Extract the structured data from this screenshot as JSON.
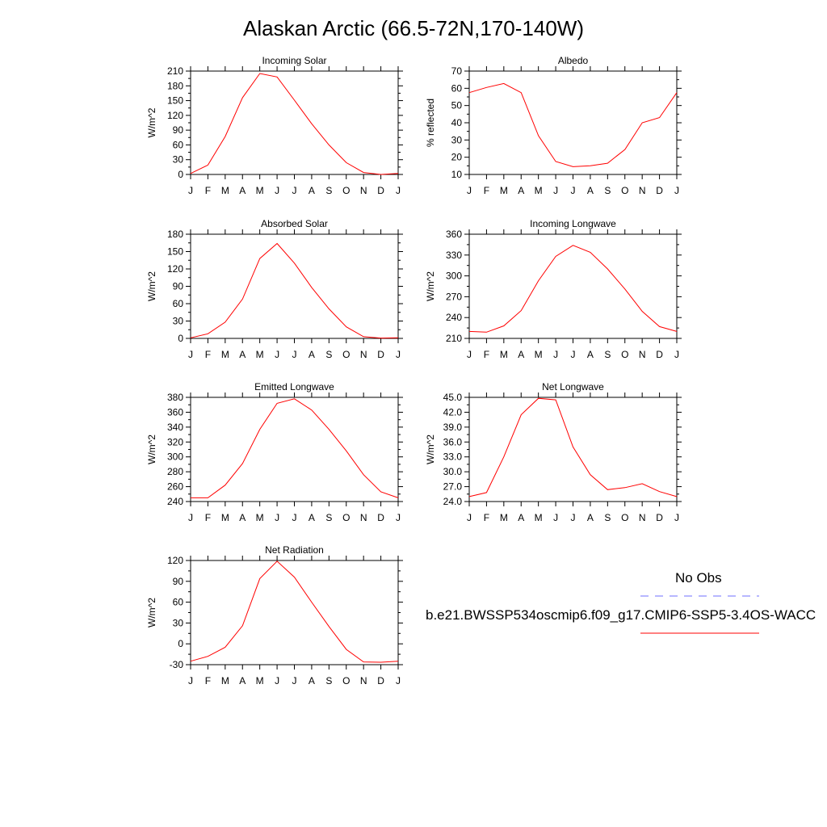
{
  "title": "Alaskan Arctic (66.5-72N,170-140W)",
  "months": [
    "J",
    "F",
    "M",
    "A",
    "M",
    "J",
    "J",
    "A",
    "S",
    "O",
    "N",
    "D",
    "J"
  ],
  "legend": {
    "obs_label": "No Obs",
    "obs_color": "#6f6fff",
    "model_label": "b.e21.BWSSP534oscmip6.f09_g17.CMIP6-SSP5-3.4OS-WACC",
    "model_color": "#ff0000"
  },
  "chart_data": [
    {
      "type": "line",
      "title": "Incoming Solar",
      "ylabel": "W/m^2",
      "ylim": [
        0,
        210
      ],
      "yticks": [
        0,
        30,
        60,
        90,
        120,
        150,
        180,
        210
      ],
      "ytick_labels": [
        "0",
        "30",
        "60",
        "90",
        "120",
        "150",
        "180",
        "210"
      ],
      "x": [
        "J",
        "F",
        "M",
        "A",
        "M",
        "J",
        "J",
        "A",
        "S",
        "O",
        "N",
        "D",
        "J"
      ],
      "series": [
        {
          "values": [
            2,
            19,
            77,
            156,
            205,
            198,
            151,
            103,
            60,
            24,
            4,
            0,
            2
          ]
        }
      ]
    },
    {
      "type": "line",
      "title": "Albedo",
      "ylabel": "% reflected",
      "ylim": [
        10,
        70
      ],
      "yticks": [
        10,
        20,
        30,
        40,
        50,
        60,
        70
      ],
      "ytick_labels": [
        "10",
        "20",
        "30",
        "40",
        "50",
        "60",
        "70"
      ],
      "x": [
        "J",
        "F",
        "M",
        "A",
        "M",
        "J",
        "J",
        "A",
        "S",
        "O",
        "N",
        "D",
        "J"
      ],
      "series": [
        {
          "values": [
            57.5,
            60.5,
            62.8,
            57.5,
            32.5,
            17.5,
            14.5,
            15,
            16.5,
            24.5,
            40,
            43,
            57.5
          ]
        }
      ]
    },
    {
      "type": "line",
      "title": "Absorbed Solar",
      "ylabel": "W/m^2",
      "ylim": [
        0,
        180
      ],
      "yticks": [
        0,
        30,
        60,
        90,
        120,
        150,
        180
      ],
      "ytick_labels": [
        "0",
        "30",
        "60",
        "90",
        "120",
        "150",
        "180"
      ],
      "x": [
        "J",
        "F",
        "M",
        "A",
        "M",
        "J",
        "J",
        "A",
        "S",
        "O",
        "N",
        "D",
        "J"
      ],
      "series": [
        {
          "values": [
            1,
            8,
            28,
            68,
            138,
            164,
            130,
            88,
            51,
            20,
            3,
            0.5,
            1
          ]
        }
      ]
    },
    {
      "type": "line",
      "title": "Incoming Longwave",
      "ylabel": "W/m^2",
      "ylim": [
        210,
        360
      ],
      "yticks": [
        210,
        240,
        270,
        300,
        330,
        360
      ],
      "ytick_labels": [
        "210",
        "240",
        "270",
        "300",
        "330",
        "360"
      ],
      "x": [
        "J",
        "F",
        "M",
        "A",
        "M",
        "J",
        "J",
        "A",
        "S",
        "O",
        "N",
        "D",
        "J"
      ],
      "series": [
        {
          "values": [
            220,
            219,
            228,
            250,
            293,
            328,
            344,
            334,
            310,
            281,
            249,
            227,
            220
          ]
        }
      ]
    },
    {
      "type": "line",
      "title": "Emitted Longwave",
      "ylabel": "W/m^2",
      "ylim": [
        240,
        380
      ],
      "yticks": [
        240,
        260,
        280,
        300,
        320,
        340,
        360,
        380
      ],
      "ytick_labels": [
        "240",
        "260",
        "280",
        "300",
        "320",
        "340",
        "360",
        "380"
      ],
      "x": [
        "J",
        "F",
        "M",
        "A",
        "M",
        "J",
        "J",
        "A",
        "S",
        "O",
        "N",
        "D",
        "J"
      ],
      "series": [
        {
          "values": [
            245,
            245,
            262,
            291,
            337,
            372,
            378,
            363,
            337,
            308,
            276,
            253,
            245
          ]
        }
      ]
    },
    {
      "type": "line",
      "title": "Net Longwave",
      "ylabel": "W/m^2",
      "ylim": [
        24,
        45
      ],
      "yticks": [
        24,
        27,
        30,
        33,
        36,
        39,
        42,
        45
      ],
      "ytick_labels": [
        "24.0",
        "27.0",
        "30.0",
        "33.0",
        "36.0",
        "39.0",
        "42.0",
        "45.0"
      ],
      "x": [
        "J",
        "F",
        "M",
        "A",
        "M",
        "J",
        "J",
        "A",
        "S",
        "O",
        "N",
        "D",
        "J"
      ],
      "series": [
        {
          "values": [
            25,
            25.8,
            33,
            41.5,
            44.8,
            44.5,
            35,
            29.4,
            26.4,
            26.8,
            27.6,
            26,
            25
          ]
        }
      ]
    },
    {
      "type": "line",
      "title": "Net Radiation",
      "ylabel": "W/m^2",
      "ylim": [
        -30,
        120
      ],
      "yticks": [
        -30,
        0,
        30,
        60,
        90,
        120
      ],
      "ytick_labels": [
        "-30",
        "0",
        "30",
        "60",
        "90",
        "120"
      ],
      "x": [
        "J",
        "F",
        "M",
        "A",
        "M",
        "J",
        "J",
        "A",
        "S",
        "O",
        "N",
        "D",
        "J"
      ],
      "series": [
        {
          "values": [
            -25,
            -18,
            -5,
            26,
            94,
            119,
            96,
            60,
            25,
            -8,
            -26,
            -26.5,
            -25
          ]
        }
      ]
    }
  ]
}
